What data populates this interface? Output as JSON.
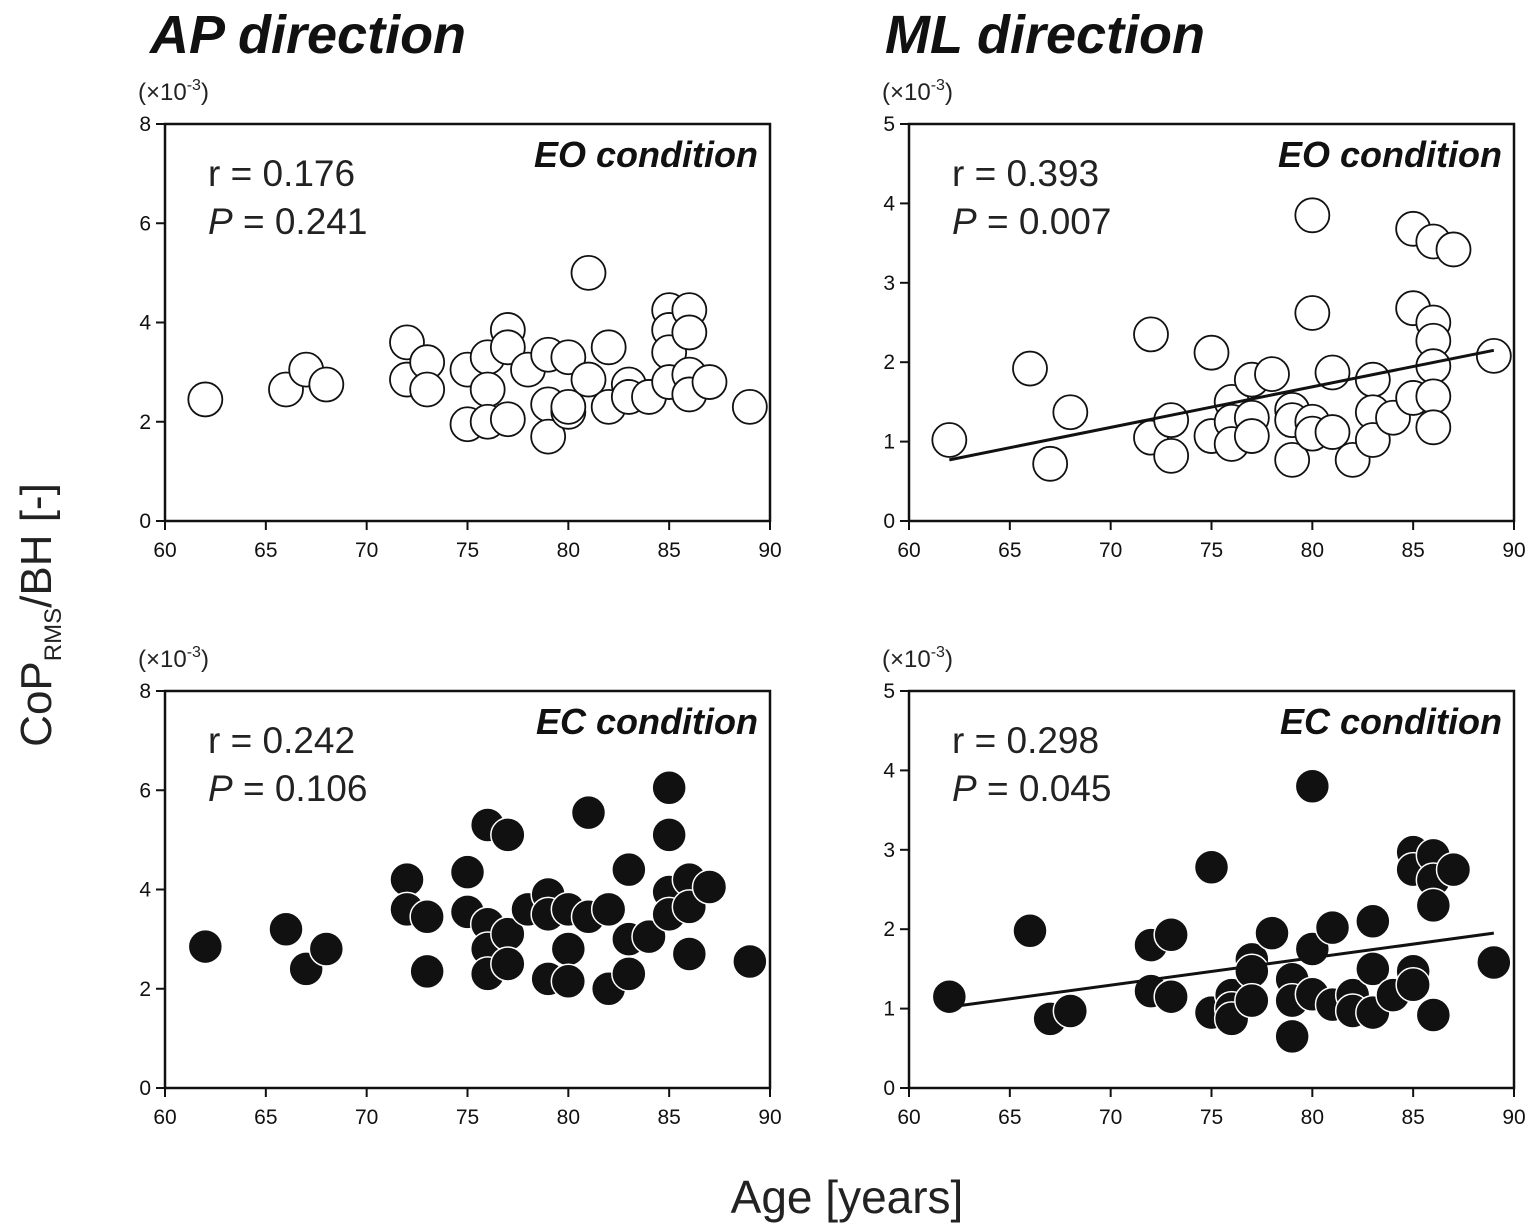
{
  "figure": {
    "columns": [
      "AP direction",
      "ML direction"
    ],
    "ylabel_main": "CoP",
    "ylabel_sub": "RMS",
    "ylabel_rest": "/BH [-]",
    "xlabel": "Age [years]"
  },
  "chart_data": [
    {
      "type": "scatter",
      "id": "ap-eo",
      "column": "AP direction",
      "condition": "EO condition",
      "marker": "open",
      "scale_label": "(×10",
      "scale_exp": "-3",
      "r_text": "r = 0.176",
      "p_label": "P",
      "p_text": " = 0.241",
      "xlim": [
        60,
        90
      ],
      "ylim": [
        0,
        8
      ],
      "xticks": [
        60,
        65,
        70,
        75,
        80,
        85,
        90
      ],
      "yticks": [
        0,
        2,
        4,
        6,
        8
      ],
      "regression": null,
      "points": [
        [
          62,
          2.45
        ],
        [
          66,
          2.65
        ],
        [
          67,
          3.05
        ],
        [
          68,
          2.75
        ],
        [
          72,
          3.6
        ],
        [
          72,
          2.85
        ],
        [
          73,
          3.2
        ],
        [
          73,
          2.65
        ],
        [
          75,
          3.05
        ],
        [
          75,
          1.95
        ],
        [
          76,
          3.3
        ],
        [
          76,
          2.65
        ],
        [
          76,
          2.0
        ],
        [
          77,
          3.85
        ],
        [
          77,
          3.5
        ],
        [
          77,
          2.05
        ],
        [
          78,
          3.05
        ],
        [
          79,
          3.35
        ],
        [
          79,
          2.35
        ],
        [
          79,
          1.7
        ],
        [
          80,
          3.3
        ],
        [
          80,
          2.2
        ],
        [
          80,
          2.3
        ],
        [
          81,
          5.0
        ],
        [
          81,
          2.85
        ],
        [
          82,
          3.5
        ],
        [
          82,
          2.3
        ],
        [
          83,
          2.75
        ],
        [
          83,
          2.5
        ],
        [
          84,
          2.5
        ],
        [
          85,
          4.25
        ],
        [
          85,
          3.85
        ],
        [
          85,
          3.4
        ],
        [
          85,
          2.8
        ],
        [
          86,
          4.25
        ],
        [
          86,
          3.8
        ],
        [
          86,
          2.95
        ],
        [
          86,
          2.55
        ],
        [
          87,
          2.8
        ],
        [
          89,
          2.3
        ]
      ]
    },
    {
      "type": "scatter",
      "id": "ml-eo",
      "column": "ML direction",
      "condition": "EO condition",
      "marker": "open",
      "scale_label": "(×10",
      "scale_exp": "-3",
      "r_text": "r = 0.393",
      "p_label": "P",
      "p_text": " = 0.007",
      "xlim": [
        60,
        90
      ],
      "ylim": [
        0,
        5
      ],
      "xticks": [
        60,
        65,
        70,
        75,
        80,
        85,
        90
      ],
      "yticks": [
        0,
        1,
        2,
        3,
        4,
        5
      ],
      "regression": [
        [
          62,
          0.77
        ],
        [
          89,
          2.15
        ]
      ],
      "points": [
        [
          62,
          1.02
        ],
        [
          66,
          1.92
        ],
        [
          67,
          0.72
        ],
        [
          68,
          1.37
        ],
        [
          72,
          2.35
        ],
        [
          72,
          1.05
        ],
        [
          73,
          1.27
        ],
        [
          73,
          0.82
        ],
        [
          75,
          2.12
        ],
        [
          75,
          1.07
        ],
        [
          76,
          1.5
        ],
        [
          76,
          1.25
        ],
        [
          76,
          0.97
        ],
        [
          77,
          1.78
        ],
        [
          77,
          1.3
        ],
        [
          77,
          1.07
        ],
        [
          78,
          1.85
        ],
        [
          79,
          1.4
        ],
        [
          79,
          1.27
        ],
        [
          79,
          0.77
        ],
        [
          80,
          3.85
        ],
        [
          80,
          2.62
        ],
        [
          80,
          1.25
        ],
        [
          80,
          1.1
        ],
        [
          81,
          1.87
        ],
        [
          81,
          1.12
        ],
        [
          82,
          0.77
        ],
        [
          83,
          1.78
        ],
        [
          83,
          1.37
        ],
        [
          83,
          1.02
        ],
        [
          84,
          1.3
        ],
        [
          85,
          3.68
        ],
        [
          85,
          2.68
        ],
        [
          85,
          1.55
        ],
        [
          86,
          3.52
        ],
        [
          86,
          2.5
        ],
        [
          86,
          2.27
        ],
        [
          86,
          1.95
        ],
        [
          86,
          1.57
        ],
        [
          86,
          1.18
        ],
        [
          87,
          3.42
        ],
        [
          89,
          2.08
        ]
      ]
    },
    {
      "type": "scatter",
      "id": "ap-ec",
      "column": "AP direction",
      "condition": "EC condition",
      "marker": "filled",
      "scale_label": "(×10",
      "scale_exp": "-3",
      "r_text": "r = 0.242",
      "p_label": "P",
      "p_text": " = 0.106",
      "xlim": [
        60,
        90
      ],
      "ylim": [
        0,
        8
      ],
      "xticks": [
        60,
        65,
        70,
        75,
        80,
        85,
        90
      ],
      "yticks": [
        0,
        2,
        4,
        6,
        8
      ],
      "regression": null,
      "points": [
        [
          62,
          2.85
        ],
        [
          66,
          3.2
        ],
        [
          67,
          2.4
        ],
        [
          68,
          2.8
        ],
        [
          72,
          4.2
        ],
        [
          72,
          3.6
        ],
        [
          73,
          3.45
        ],
        [
          73,
          2.35
        ],
        [
          75,
          4.35
        ],
        [
          75,
          3.55
        ],
        [
          76,
          5.3
        ],
        [
          76,
          3.3
        ],
        [
          76,
          2.8
        ],
        [
          76,
          2.3
        ],
        [
          77,
          5.1
        ],
        [
          77,
          3.1
        ],
        [
          77,
          2.5
        ],
        [
          78,
          3.6
        ],
        [
          79,
          3.9
        ],
        [
          79,
          3.5
        ],
        [
          79,
          2.2
        ],
        [
          80,
          3.6
        ],
        [
          80,
          2.8
        ],
        [
          80,
          2.15
        ],
        [
          81,
          5.55
        ],
        [
          81,
          3.45
        ],
        [
          82,
          3.6
        ],
        [
          82,
          2.0
        ],
        [
          83,
          4.4
        ],
        [
          83,
          3.0
        ],
        [
          83,
          2.3
        ],
        [
          84,
          3.05
        ],
        [
          85,
          6.05
        ],
        [
          85,
          5.1
        ],
        [
          85,
          3.95
        ],
        [
          85,
          3.5
        ],
        [
          86,
          4.2
        ],
        [
          86,
          3.65
        ],
        [
          86,
          2.7
        ],
        [
          87,
          4.05
        ],
        [
          89,
          2.55
        ]
      ]
    },
    {
      "type": "scatter",
      "id": "ml-ec",
      "column": "ML direction",
      "condition": "EC condition",
      "marker": "filled",
      "scale_label": "(×10",
      "scale_exp": "-3",
      "r_text": "r = 0.298",
      "p_label": "P",
      "p_text": " = 0.045",
      "xlim": [
        60,
        90
      ],
      "ylim": [
        0,
        5
      ],
      "xticks": [
        60,
        65,
        70,
        75,
        80,
        85,
        90
      ],
      "yticks": [
        0,
        1,
        2,
        3,
        4,
        5
      ],
      "regression": [
        [
          62,
          1.02
        ],
        [
          89,
          1.95
        ]
      ],
      "points": [
        [
          62,
          1.15
        ],
        [
          66,
          1.98
        ],
        [
          67,
          0.87
        ],
        [
          68,
          0.97
        ],
        [
          72,
          1.8
        ],
        [
          72,
          1.22
        ],
        [
          73,
          1.93
        ],
        [
          73,
          1.15
        ],
        [
          75,
          2.78
        ],
        [
          75,
          0.95
        ],
        [
          76,
          1.17
        ],
        [
          76,
          1.0
        ],
        [
          76,
          0.87
        ],
        [
          77,
          1.62
        ],
        [
          77,
          1.47
        ],
        [
          77,
          1.1
        ],
        [
          78,
          1.95
        ],
        [
          79,
          1.37
        ],
        [
          79,
          1.1
        ],
        [
          79,
          0.65
        ],
        [
          80,
          3.8
        ],
        [
          80,
          1.75
        ],
        [
          80,
          1.18
        ],
        [
          81,
          2.02
        ],
        [
          81,
          1.05
        ],
        [
          82,
          1.17
        ],
        [
          82,
          0.97
        ],
        [
          83,
          2.1
        ],
        [
          83,
          1.5
        ],
        [
          83,
          0.95
        ],
        [
          84,
          1.17
        ],
        [
          85,
          2.97
        ],
        [
          85,
          2.75
        ],
        [
          85,
          1.47
        ],
        [
          85,
          1.3
        ],
        [
          86,
          2.93
        ],
        [
          86,
          2.62
        ],
        [
          86,
          2.3
        ],
        [
          86,
          0.92
        ],
        [
          87,
          2.75
        ],
        [
          89,
          1.58
        ]
      ]
    }
  ]
}
